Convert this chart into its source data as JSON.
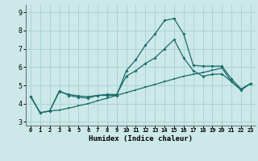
{
  "xlabel": "Humidex (Indice chaleur)",
  "background_color": "#cce8e8",
  "line_color": "#1a6b6b",
  "grid_color": "#aad4d4",
  "xlim": [
    -0.5,
    23.5
  ],
  "ylim": [
    2.8,
    9.4
  ],
  "yticks": [
    3,
    4,
    5,
    6,
    7,
    8,
    9
  ],
  "xticks": [
    0,
    1,
    2,
    3,
    4,
    5,
    6,
    7,
    8,
    9,
    10,
    11,
    12,
    13,
    14,
    15,
    16,
    17,
    18,
    19,
    20,
    21,
    22,
    23
  ],
  "series1_x": [
    0,
    1,
    2,
    3,
    4,
    5,
    6,
    7,
    8,
    9,
    10,
    11,
    12,
    13,
    14,
    15,
    16,
    17,
    18,
    19,
    20,
    21,
    22,
    23
  ],
  "series1_y": [
    4.4,
    3.5,
    3.6,
    3.65,
    3.75,
    3.88,
    4.0,
    4.15,
    4.3,
    4.45,
    4.6,
    4.75,
    4.9,
    5.05,
    5.2,
    5.35,
    5.5,
    5.6,
    5.7,
    5.82,
    5.95,
    5.2,
    4.75,
    5.1
  ],
  "series2_x": [
    0,
    1,
    2,
    3,
    4,
    5,
    6,
    7,
    8,
    9,
    10,
    11,
    12,
    13,
    14,
    15,
    16,
    17,
    18,
    19,
    20,
    21,
    22,
    23
  ],
  "series2_y": [
    4.4,
    3.5,
    3.6,
    4.7,
    4.45,
    4.35,
    4.3,
    4.45,
    4.45,
    4.45,
    5.8,
    6.4,
    7.2,
    7.8,
    8.55,
    8.65,
    7.8,
    6.1,
    6.05,
    6.05,
    6.05,
    5.35,
    4.8,
    5.1
  ],
  "series3_x": [
    0,
    1,
    2,
    3,
    4,
    5,
    6,
    7,
    8,
    9,
    10,
    11,
    12,
    13,
    14,
    15,
    16,
    17,
    18,
    19,
    20,
    21,
    22,
    23
  ],
  "series3_y": [
    4.4,
    3.5,
    3.6,
    4.65,
    4.5,
    4.42,
    4.38,
    4.45,
    4.5,
    4.5,
    5.5,
    5.8,
    6.2,
    6.5,
    7.0,
    7.5,
    6.5,
    5.8,
    5.5,
    5.6,
    5.62,
    5.2,
    4.75,
    5.1
  ]
}
